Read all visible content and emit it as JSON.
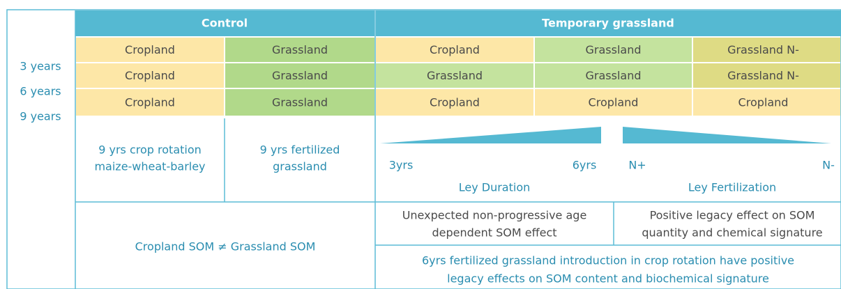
{
  "headers": [
    "Control",
    "Temporary grassland"
  ],
  "row_labels": [
    "3 years",
    "6 years",
    "9 years"
  ],
  "grid": {
    "rows": [
      [
        "Cropland",
        "Grassland",
        "Cropland",
        "Grassland",
        "Grassland N-"
      ],
      [
        "Cropland",
        "Grassland",
        "Grassland",
        "Grassland",
        "Grassland N-"
      ],
      [
        "Cropland",
        "Grassland",
        "Cropland",
        "Cropland",
        "Cropland"
      ]
    ]
  },
  "control_descriptions": [
    [
      "9 yrs crop rotation",
      "maize-wheat-barley"
    ],
    [
      "9 yrs fertilized",
      "grassland"
    ]
  ],
  "gradients": [
    {
      "start": "3yrs",
      "end": "6yrs",
      "label": "Ley Duration"
    },
    {
      "start": "N+",
      "end": "N-",
      "label": "Ley Fertilization"
    }
  ],
  "findings": {
    "control": "Cropland SOM ≠ Grassland SOM",
    "duration": [
      "Unexpected non-progressive age",
      "dependent SOM effect"
    ],
    "fertilization": [
      "Positive legacy effect on SOM",
      "quantity and chemical signature"
    ],
    "overall": [
      "6yrs fertilized grassland introduction in crop rotation have positive",
      "legacy effects on SOM content and biochemical signature"
    ]
  }
}
